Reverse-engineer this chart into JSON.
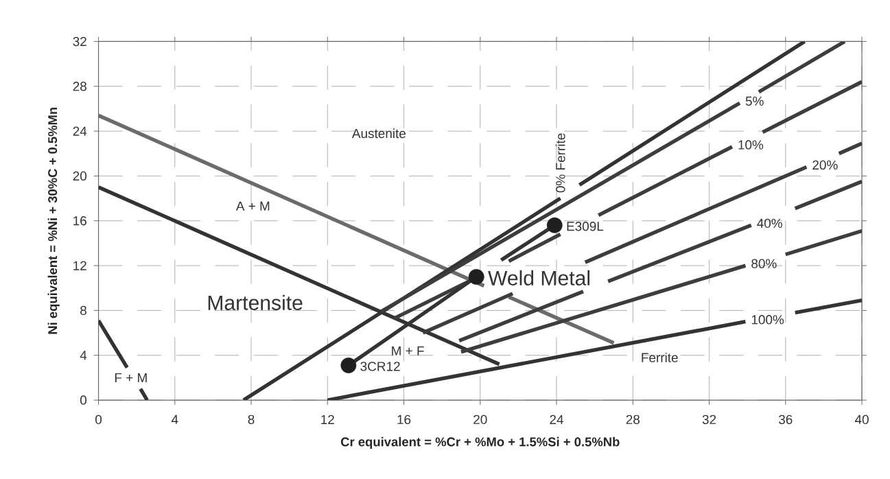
{
  "chart_data": {
    "type": "line",
    "xlabel": "Cr equivalent = %Cr + %Mo + 1.5%Si + 0.5%Nb",
    "ylabel": "Ni equivalent = %Ni + 30%C + 0.5%Mn",
    "xlim": [
      0,
      40
    ],
    "ylim": [
      0,
      32
    ],
    "xticks": [
      0,
      4,
      8,
      12,
      16,
      20,
      24,
      28,
      32,
      36,
      40
    ],
    "yticks": [
      0,
      4,
      8,
      12,
      16,
      20,
      24,
      28,
      32
    ],
    "grid": true,
    "marker": "none",
    "series": [
      {
        "color": "#6b6b6b",
        "x": [
          0,
          20.2,
          20.8,
          21.5,
          27
        ],
        "values": [
          25.4,
          10.2,
          null,
          9.2,
          5.1
        ]
      },
      {
        "color": "#333333",
        "x": [
          0,
          21
        ],
        "values": [
          19,
          3.2
        ]
      },
      {
        "color": "#333333",
        "x": [
          0,
          1.5,
          1.8,
          2.2,
          2.55
        ],
        "values": [
          7.1,
          2.9,
          null,
          1.0,
          0
        ]
      },
      {
        "name": "0% Ferrite",
        "color": "#333333",
        "x": [
          7.6,
          24.2,
          24.7,
          25.2,
          37
        ],
        "values": [
          0,
          18.0,
          null,
          19.2,
          32
        ]
      },
      {
        "name": "5%",
        "color": "#3d3d3d",
        "x": [
          14.8,
          33.6,
          34.1,
          34.6,
          39.1
        ],
        "values": [
          7.9,
          26.5,
          null,
          27.5,
          32
        ]
      },
      {
        "name": "10%",
        "color": "#3d3d3d",
        "x": [
          15.5,
          20.0,
          20.7,
          21.5,
          24.2,
          25.2,
          26.2,
          33.2,
          34.0,
          34.8,
          40
        ],
        "values": [
          7.3,
          11.1,
          null,
          12.4,
          14.8,
          null,
          16.5,
          22.6,
          null,
          23.9,
          28.4
        ]
      },
      {
        "name": "20%",
        "color": "#3d3d3d",
        "x": [
          17.0,
          21.7,
          23.6,
          25.5,
          37.1,
          38.0,
          38.8,
          40
        ],
        "values": [
          6.0,
          9.5,
          null,
          12.3,
          20.8,
          null,
          22.0,
          22.9
        ]
      },
      {
        "name": "40%",
        "color": "#3d3d3d",
        "x": [
          18.9,
          25.4,
          26.05,
          26.7,
          34.2,
          35.3,
          36.5,
          40
        ],
        "values": [
          5.3,
          9.7,
          null,
          10.6,
          15.6,
          null,
          17.1,
          19.5
        ]
      },
      {
        "name": "80%",
        "color": "#3d3d3d",
        "x": [
          19.0,
          33.9,
          34.9,
          36.0,
          40
        ],
        "values": [
          4.3,
          12.0,
          null,
          13.0,
          15.1
        ]
      },
      {
        "name": "100%",
        "color": "#333333",
        "x": [
          12,
          33.9,
          35.2,
          36.5,
          40
        ],
        "values": [
          0,
          7.0,
          null,
          7.8,
          8.9
        ]
      },
      {
        "color": "#333333",
        "x": [
          13.1,
          19.8,
          20.5,
          21.1,
          23.9
        ],
        "values": [
          3.1,
          11.0,
          null,
          12.5,
          15.6
        ]
      },
      {
        "type": "scatter",
        "marker": "circle",
        "color": "#1f1f1f",
        "x": [
          13.1,
          19.8,
          23.9
        ],
        "values": [
          3.1,
          11.0,
          15.6
        ]
      }
    ],
    "annotations": [
      "Austenite",
      "A + M",
      "Martensite",
      "F + M",
      "M + F",
      "Ferrite",
      {
        "text": "3CR12",
        "x": 13.1,
        "y": 3.1
      },
      {
        "text": "Weld Metal",
        "x": 19.8,
        "y": 11.0
      },
      {
        "text": "E309L",
        "x": 23.9,
        "y": 15.6
      }
    ]
  }
}
